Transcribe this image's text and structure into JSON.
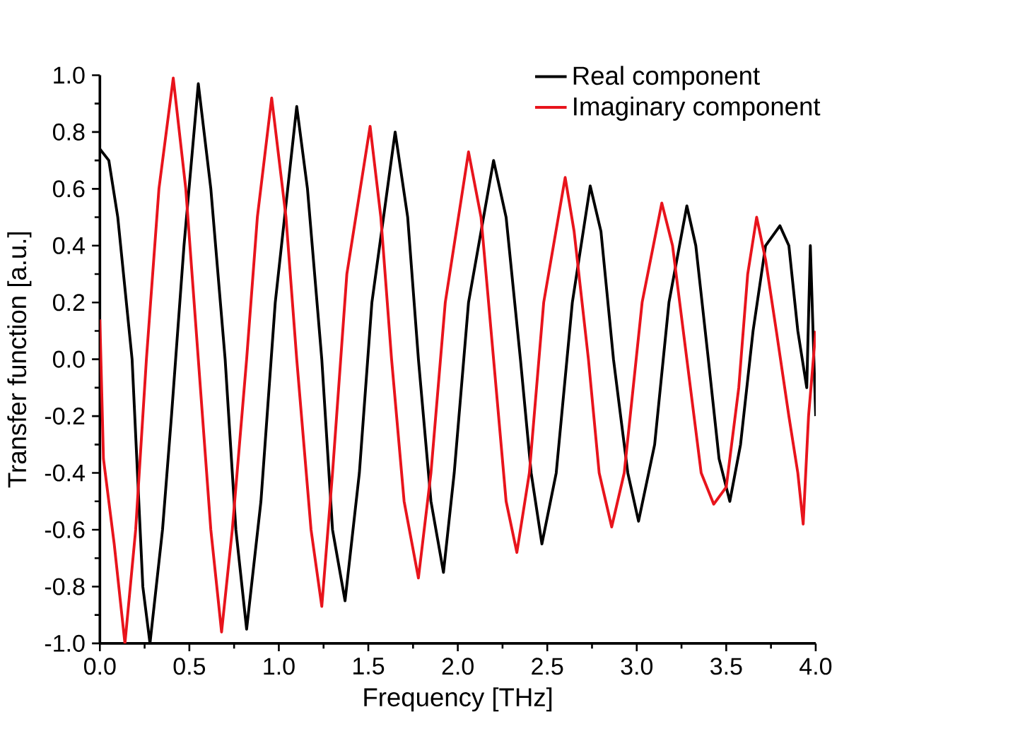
{
  "chart_data": {
    "type": "line",
    "xlabel": "Frequency [THz]",
    "ylabel": "Transfer function [a.u.]",
    "xlim": [
      0,
      4
    ],
    "ylim": [
      -1,
      1
    ],
    "xticks": [
      {
        "value": 0,
        "label": "0.0"
      },
      {
        "value": 0.5,
        "label": "0.5"
      },
      {
        "value": 1,
        "label": "1.0"
      },
      {
        "value": 1.5,
        "label": "1.5"
      },
      {
        "value": 2,
        "label": "2.0"
      },
      {
        "value": 2.5,
        "label": "2.5"
      },
      {
        "value": 3,
        "label": "3.0"
      },
      {
        "value": 3.5,
        "label": "3.5"
      },
      {
        "value": 4,
        "label": "4.0"
      }
    ],
    "yticks": [
      {
        "value": -1,
        "label": "-1.0"
      },
      {
        "value": -0.8,
        "label": "-0.8"
      },
      {
        "value": -0.6,
        "label": "-0.6"
      },
      {
        "value": -0.4,
        "label": "-0.4"
      },
      {
        "value": -0.2,
        "label": "-0.2"
      },
      {
        "value": 0,
        "label": "0.0"
      },
      {
        "value": 0.2,
        "label": "0.2"
      },
      {
        "value": 0.4,
        "label": "0.4"
      },
      {
        "value": 0.6,
        "label": "0.6"
      },
      {
        "value": 0.8,
        "label": "0.8"
      },
      {
        "value": 1,
        "label": "1.0"
      }
    ],
    "grid": false,
    "legend": "top right",
    "marker": "none",
    "line_style": "solid",
    "series": [
      {
        "name": "Real component",
        "color": "#000000",
        "x": [
          0,
          0.05,
          0.1,
          0.18,
          0.24,
          0.28,
          0.35,
          0.4,
          0.47,
          0.55,
          0.62,
          0.7,
          0.76,
          0.82,
          0.9,
          0.98,
          1.1,
          1.16,
          1.24,
          1.3,
          1.37,
          1.45,
          1.52,
          1.65,
          1.72,
          1.78,
          1.85,
          1.92,
          1.98,
          2.06,
          2.2,
          2.27,
          2.35,
          2.41,
          2.47,
          2.55,
          2.64,
          2.74,
          2.8,
          2.87,
          2.95,
          3.01,
          3.1,
          3.18,
          3.28,
          3.33,
          3.4,
          3.46,
          3.52,
          3.58,
          3.65,
          3.72,
          3.8,
          3.85,
          3.9,
          3.95,
          3.97,
          4.0
        ],
        "values": [
          0.74,
          0.7,
          0.5,
          0,
          -0.8,
          -1,
          -0.6,
          -0.2,
          0.4,
          0.97,
          0.6,
          0,
          -0.6,
          -0.95,
          -0.5,
          0.2,
          0.89,
          0.6,
          0,
          -0.6,
          -0.85,
          -0.4,
          0.2,
          0.8,
          0.5,
          0,
          -0.5,
          -0.75,
          -0.4,
          0.2,
          0.7,
          0.5,
          0,
          -0.4,
          -0.65,
          -0.4,
          0.2,
          0.61,
          0.45,
          0,
          -0.4,
          -0.57,
          -0.3,
          0.2,
          0.54,
          0.4,
          0,
          -0.35,
          -0.5,
          -0.3,
          0.1,
          0.4,
          0.47,
          0.4,
          0.1,
          -0.1,
          0.4,
          -0.2
        ]
      },
      {
        "name": "Imaginary component",
        "color": "#e8141c",
        "x": [
          0,
          0.02,
          0.08,
          0.14,
          0.2,
          0.26,
          0.33,
          0.41,
          0.48,
          0.55,
          0.62,
          0.68,
          0.74,
          0.82,
          0.88,
          0.96,
          1.04,
          1.1,
          1.18,
          1.24,
          1.3,
          1.38,
          1.51,
          1.57,
          1.63,
          1.7,
          1.78,
          1.85,
          1.93,
          2.06,
          2.13,
          2.2,
          2.27,
          2.33,
          2.4,
          2.48,
          2.6,
          2.65,
          2.73,
          2.79,
          2.86,
          2.93,
          3.03,
          3.14,
          3.2,
          3.28,
          3.36,
          3.43,
          3.5,
          3.57,
          3.62,
          3.67,
          3.72,
          3.78,
          3.85,
          3.9,
          3.93,
          3.96,
          4.0
        ],
        "values": [
          0.14,
          -0.35,
          -0.65,
          -1,
          -0.6,
          0,
          0.6,
          0.99,
          0.6,
          0,
          -0.6,
          -0.96,
          -0.6,
          0,
          0.5,
          0.92,
          0.5,
          0,
          -0.6,
          -0.87,
          -0.4,
          0.3,
          0.82,
          0.5,
          0,
          -0.5,
          -0.77,
          -0.4,
          0.2,
          0.73,
          0.5,
          0,
          -0.5,
          -0.68,
          -0.4,
          0.2,
          0.64,
          0.45,
          0,
          -0.4,
          -0.59,
          -0.4,
          0.2,
          0.55,
          0.4,
          0,
          -0.4,
          -0.51,
          -0.45,
          -0.1,
          0.3,
          0.5,
          0.35,
          0.1,
          -0.2,
          -0.4,
          -0.58,
          -0.2,
          0.1
        ]
      }
    ]
  }
}
